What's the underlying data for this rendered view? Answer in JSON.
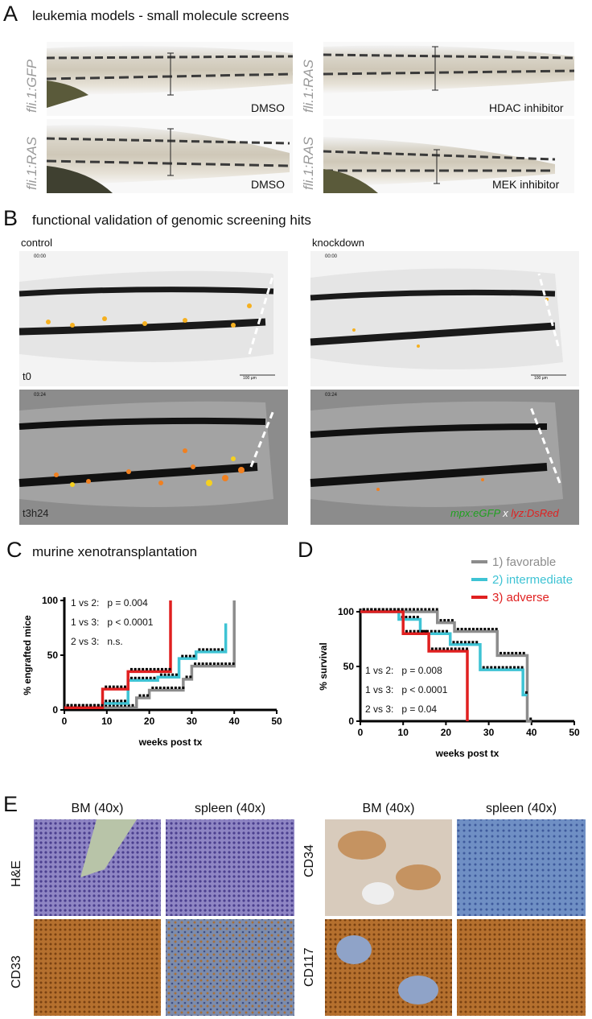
{
  "panelA": {
    "letter": "A",
    "title": "leukemia models - small molecule screens",
    "images": [
      {
        "label": "fli.1:GFP",
        "treatment": "DMSO"
      },
      {
        "label": "fli.1:RAS",
        "treatment": "HDAC inhibitor"
      },
      {
        "label": "fli.1:RAS",
        "treatment": "DMSO"
      },
      {
        "label": "fli.1:RAS",
        "treatment": "MEK inhibitor"
      }
    ]
  },
  "panelB": {
    "letter": "B",
    "title": "functional validation of genomic screening hits",
    "col_left": "control",
    "col_right": "knockdown",
    "time_top": "00:00",
    "time_bottom": "03:24",
    "t0": "t0",
    "t1": "t3h24",
    "scale": "100 µm",
    "legend_green": "mpx:eGFP",
    "legend_x": "x",
    "legend_red": "lyz:DsRed"
  },
  "panelC": {
    "letter": "C",
    "title": "murine xenotransplantation",
    "stats": [
      {
        "pair": "1 vs 2:",
        "p": "p = 0.004"
      },
      {
        "pair": "1 vs 3:",
        "p": "p < 0.0001"
      },
      {
        "pair": "2 vs 3:",
        "p": "n.s."
      }
    ]
  },
  "panelD": {
    "letter": "D",
    "stats": [
      {
        "pair": "1 vs 2:",
        "p": "p = 0.008"
      },
      {
        "pair": "1 vs 3:",
        "p": "p < 0.0001"
      },
      {
        "pair": "2 vs 3:",
        "p": "p = 0.04"
      }
    ]
  },
  "panelE": {
    "letter": "E",
    "col_headers": [
      "BM (40x)",
      "spleen (40x)",
      "BM (40x)",
      "spleen (40x)"
    ],
    "row_labels": [
      "H&E",
      "CD33",
      "CD34",
      "CD117"
    ]
  },
  "colors": {
    "favorable": "#8c8c8c",
    "intermediate": "#3ec3d4",
    "adverse": "#e02020"
  },
  "chart_data": [
    {
      "type": "line",
      "step": true,
      "xlabel": "weeks post tx",
      "ylabel": "% engrafted mice",
      "xlim": [
        0,
        50
      ],
      "ylim": [
        0,
        100
      ],
      "xticks": [
        0,
        10,
        20,
        30,
        40,
        50
      ],
      "yticks": [
        0,
        50,
        100
      ],
      "series": [
        {
          "color": "#8c8c8c",
          "x": [
            0,
            17,
            17,
            20,
            20,
            28,
            28,
            30,
            30,
            40,
            40
          ],
          "y": [
            2,
            2,
            11,
            11,
            18,
            18,
            28,
            28,
            40,
            40,
            100
          ]
        },
        {
          "color": "#3ec3d4",
          "x": [
            0,
            9,
            9,
            15,
            15,
            22,
            22,
            27,
            27,
            31,
            31,
            38,
            38
          ],
          "y": [
            2,
            2,
            6,
            6,
            27,
            27,
            30,
            30,
            47,
            47,
            53,
            53,
            79
          ]
        },
        {
          "color": "#e02020",
          "x": [
            0,
            9,
            9,
            15,
            15,
            25,
            25
          ],
          "y": [
            2,
            2,
            19,
            19,
            35,
            35,
            100
          ]
        }
      ]
    },
    {
      "type": "line",
      "step": true,
      "xlabel": "weeks post tx",
      "ylabel": "% survival",
      "legend": "top-right",
      "xlim": [
        0,
        50
      ],
      "ylim": [
        0,
        100
      ],
      "xticks": [
        0,
        10,
        20,
        30,
        40,
        50
      ],
      "yticks": [
        0,
        50,
        100
      ],
      "series": [
        {
          "name": "1) favorable",
          "color": "#8c8c8c",
          "x": [
            0,
            18,
            18,
            22,
            22,
            32,
            32,
            39,
            39,
            40
          ],
          "y": [
            100,
            100,
            90,
            90,
            82,
            82,
            60,
            60,
            0,
            0
          ]
        },
        {
          "name": "2) intermediate",
          "color": "#3ec3d4",
          "x": [
            0,
            9,
            9,
            14,
            14,
            21,
            21,
            28,
            28,
            38,
            38,
            39
          ],
          "y": [
            100,
            100,
            93,
            93,
            80,
            80,
            70,
            70,
            47,
            47,
            24,
            24
          ]
        },
        {
          "name": "3) adverse",
          "color": "#e02020",
          "x": [
            0,
            10,
            10,
            16,
            16,
            25,
            25
          ],
          "y": [
            100,
            100,
            80,
            80,
            64,
            64,
            0
          ]
        }
      ]
    }
  ]
}
